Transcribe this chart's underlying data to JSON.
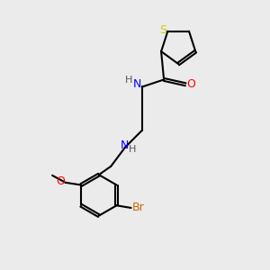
{
  "background_color": "#ebebeb",
  "atom_colors": {
    "S": "#cccc00",
    "N": "#0000ff",
    "O": "#ff0000",
    "Br": "#cc6600",
    "H": "#555555",
    "C": "#000000"
  },
  "bond_width": 1.5,
  "dbo": 0.055,
  "fontsize": 9,
  "xlim": [
    0,
    10
  ],
  "ylim": [
    0,
    11
  ]
}
